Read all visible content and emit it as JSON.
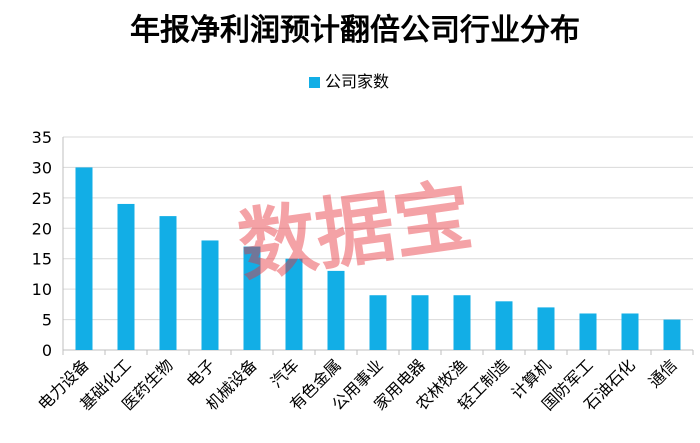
{
  "chart_data": {
    "type": "bar",
    "title": "年报净利润预计翻倍公司行业分布",
    "legend": {
      "position": "top",
      "entries": [
        "公司家数"
      ]
    },
    "categories": [
      "电力设备",
      "基础化工",
      "医药生物",
      "电子",
      "机械设备",
      "汽车",
      "有色金属",
      "公用事业",
      "家用电器",
      "农林牧渔",
      "轻工制造",
      "计算机",
      "国防军工",
      "石油石化",
      "通信"
    ],
    "series": [
      {
        "name": "公司家数",
        "values": [
          30,
          24,
          22,
          18,
          17,
          15,
          13,
          9,
          9,
          9,
          8,
          7,
          6,
          6,
          5
        ]
      }
    ],
    "yticks": [
      0,
      5,
      10,
      15,
      20,
      25,
      30,
      35
    ],
    "ylim": [
      0,
      35
    ],
    "grid": true,
    "xlabel": "",
    "ylabel": ""
  },
  "colors": {
    "bar": "#12aee6",
    "grid": "#d9d9d9",
    "axis": "#bfbfbf",
    "watermark": "#e8333c"
  },
  "watermark": "数据宝"
}
